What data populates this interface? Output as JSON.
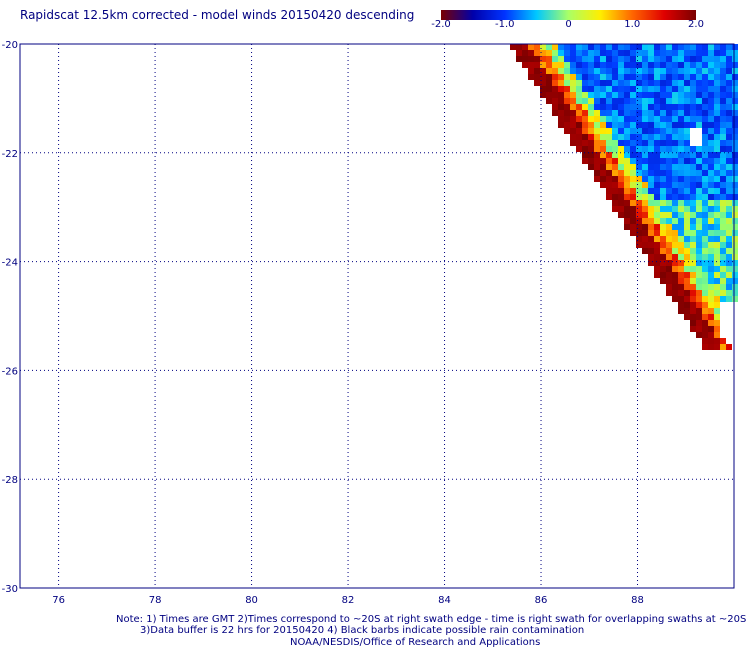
{
  "title": "Rapidscat 12.5km corrected - model winds 20150420 descending",
  "colorbar": {
    "tick_labels": [
      "-2.0",
      "-1.0",
      "0",
      "1.0",
      "2.0"
    ],
    "tick_values": [
      -2.0,
      -1.0,
      0,
      1.0,
      2.0
    ],
    "stops": [
      "#7a0000",
      "#0000aa",
      "#0033ff",
      "#00c8ff",
      "#aaff66",
      "#ffee00",
      "#ff6600",
      "#e00000",
      "#7a0000"
    ]
  },
  "map": {
    "lat_labels": [
      "-20",
      "-22",
      "-24",
      "-26",
      "-28",
      "-30"
    ],
    "lat_values": [
      -20,
      -22,
      -24,
      -26,
      -28,
      -30
    ],
    "lon_labels": [
      "76",
      "78",
      "80",
      "82",
      "84",
      "86",
      "88"
    ],
    "lon_values": [
      76,
      78,
      80,
      82,
      84,
      86,
      88
    ],
    "lon_range": [
      75.2,
      90.0
    ],
    "lat_range": [
      -30.0,
      -20.0
    ]
  },
  "notes": {
    "line1": "Note: 1) Times are GMT 2)Times correspond to ~20S at right swath edge - time is right swath for overlapping swaths at ~20S",
    "line2": "3)Data buffer is 22 hrs for 20150420 4) Black barbs indicate possible rain contamination",
    "line3": "NOAA/NESDIS/Office of Research and Applications"
  }
}
